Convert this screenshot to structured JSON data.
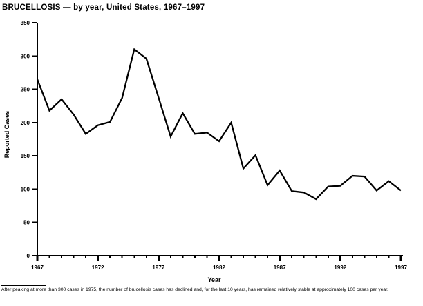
{
  "title": "BRUCELLOSIS — by year, United States, 1967–1997",
  "chart_data": {
    "type": "line",
    "title": "BRUCELLOSIS — by year, United States, 1967–1997",
    "xlabel": "Year",
    "ylabel": "Reported Cases",
    "xlim": [
      1967,
      1997
    ],
    "ylim": [
      0,
      350
    ],
    "y_ticks": [
      0,
      50,
      100,
      150,
      200,
      250,
      300,
      350
    ],
    "x_major_ticks": [
      1967,
      1972,
      1977,
      1982,
      1987,
      1992,
      1997
    ],
    "x_minor_tick_interval": 1,
    "grid": false,
    "legend": "none",
    "line_color": "#000000",
    "background_color": "#ffffff",
    "x": [
      1967,
      1968,
      1969,
      1970,
      1971,
      1972,
      1973,
      1974,
      1975,
      1976,
      1977,
      1978,
      1979,
      1980,
      1981,
      1982,
      1983,
      1984,
      1985,
      1986,
      1987,
      1988,
      1989,
      1990,
      1991,
      1992,
      1993,
      1994,
      1995,
      1996,
      1997
    ],
    "values": [
      265,
      218,
      235,
      212,
      183,
      196,
      201,
      237,
      310,
      296,
      238,
      179,
      214,
      183,
      185,
      172,
      200,
      131,
      151,
      106,
      128,
      97,
      95,
      85,
      104,
      105,
      120,
      119,
      98,
      112,
      98
    ]
  },
  "footnote": "After peaking at more than 300 cases in 1975, the number of brucellosis cases has declined and, for the last 10 years, has remained relatively stable at approximately 100 cases per year."
}
